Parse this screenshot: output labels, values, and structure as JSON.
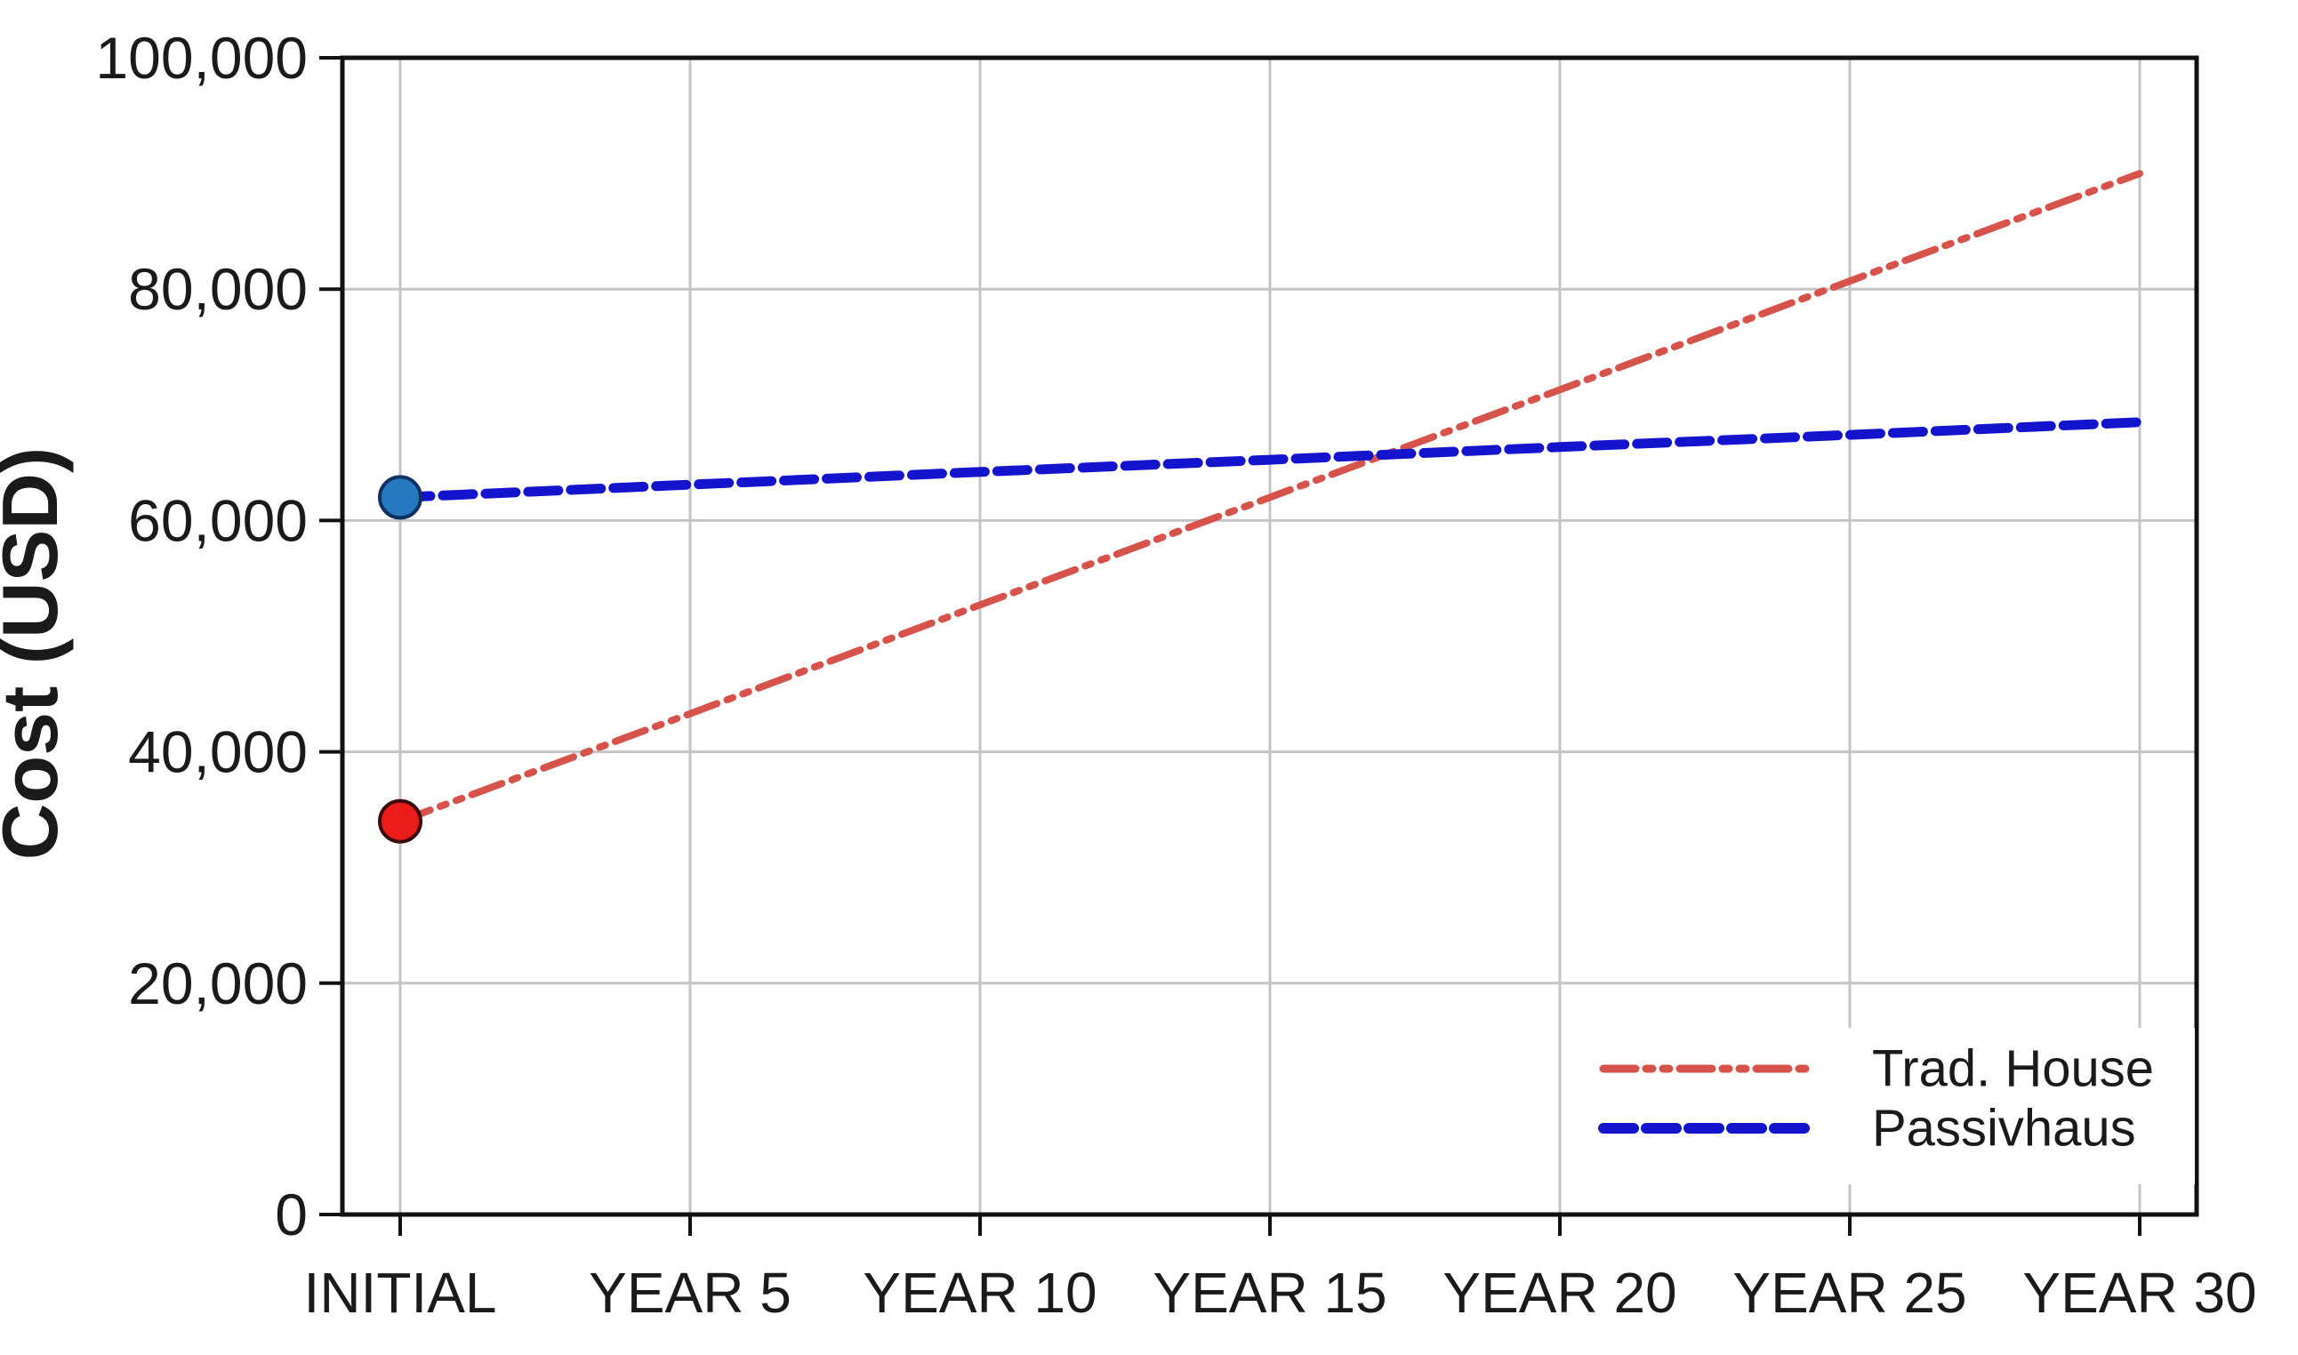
{
  "figure": {
    "background": "#FFFFFF"
  },
  "chart_data": {
    "type": "line",
    "title": "",
    "xlabel": "",
    "ylabel": "Cost (USD)",
    "categories": [
      "INITIAL",
      "YEAR 5",
      "YEAR 10",
      "YEAR 15",
      "YEAR 20",
      "YEAR 25",
      "YEAR 30"
    ],
    "series": [
      {
        "name": "Trad. House",
        "values": [
          34000,
          43300,
          52700,
          62000,
          71300,
          80700,
          90000
        ],
        "color": "#D6534C",
        "line_style": "dash-dot-dot",
        "line_width": 8,
        "marker": {
          "at_category": "INITIAL",
          "shape": "circle",
          "fill": "#EC1C1C",
          "edge": "#3C0A0A"
        }
      },
      {
        "name": "Passivhaus",
        "values": [
          62000,
          63100,
          64200,
          65250,
          66350,
          67400,
          68500
        ],
        "color": "#1414CC",
        "line_style": "dashed",
        "line_width": 11,
        "marker": {
          "at_category": "INITIAL",
          "shape": "circle",
          "fill": "#2878BE",
          "edge": "#0F3060"
        }
      }
    ],
    "ylim": [
      0,
      100000
    ],
    "yticks": [
      {
        "value": 0,
        "label": "0"
      },
      {
        "value": 20000,
        "label": "20,000"
      },
      {
        "value": 40000,
        "label": "40,000"
      },
      {
        "value": 60000,
        "label": "60,000"
      },
      {
        "value": 80000,
        "label": "80,000"
      },
      {
        "value": 100000,
        "label": "100,000"
      }
    ],
    "grid": true,
    "legend": {
      "position": "lower-right",
      "entries": [
        "Trad. House",
        "Passivhaus"
      ]
    }
  },
  "colors": {
    "axis": "#111111",
    "grid": "#C4C4C4",
    "text": "#1A1A1A",
    "background": "#FFFFFF"
  }
}
